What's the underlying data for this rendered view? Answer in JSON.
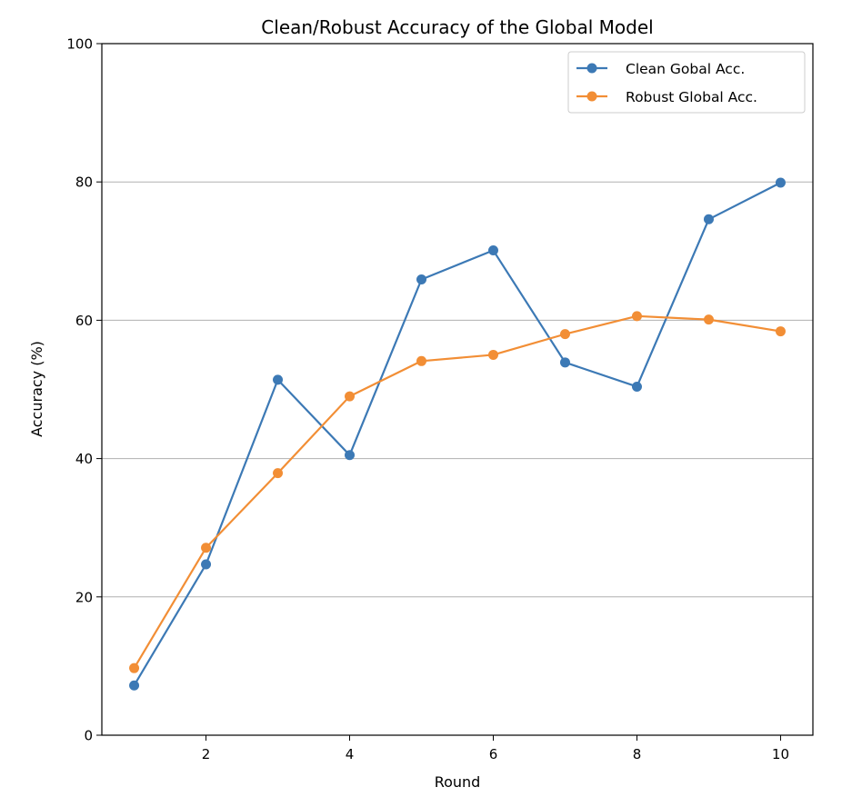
{
  "chart_data": {
    "type": "line",
    "title": "Clean/Robust Accuracy of the Global Model",
    "xlabel": "Round",
    "ylabel": "Accuracy (%)",
    "xlim": [
      0.55,
      10.45
    ],
    "ylim": [
      0,
      100
    ],
    "x_ticks": [
      2,
      4,
      6,
      8,
      10
    ],
    "y_ticks": [
      0,
      20,
      40,
      60,
      80,
      100
    ],
    "grid": "horizontal",
    "legend_position": "top-right",
    "x": [
      1,
      2,
      3,
      4,
      5,
      6,
      7,
      8,
      9,
      10
    ],
    "series": [
      {
        "name": "Clean Gobal Acc.",
        "color": "#3c79b5",
        "values": [
          7.2,
          24.7,
          51.4,
          40.5,
          65.9,
          70.1,
          53.9,
          50.4,
          74.6,
          79.9
        ]
      },
      {
        "name": "Robust Global Acc.",
        "color": "#f28e35",
        "values": [
          9.7,
          27.1,
          37.9,
          49.0,
          54.1,
          55.0,
          58.0,
          60.6,
          60.1,
          58.4
        ]
      }
    ]
  }
}
